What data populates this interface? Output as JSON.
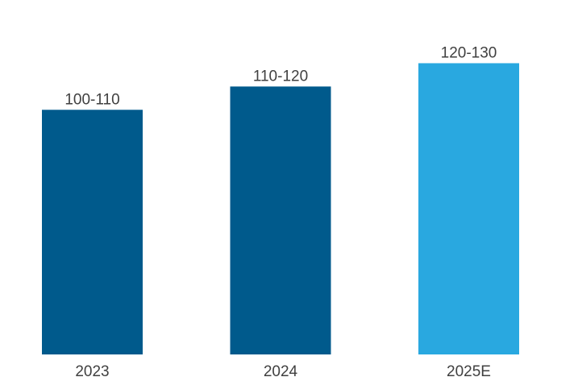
{
  "chart_data": {
    "type": "bar",
    "categories": [
      "2023",
      "2024",
      "2025E"
    ],
    "values": [
      105,
      115,
      125
    ],
    "data_labels": [
      "100-110",
      "110-120",
      "120-130"
    ],
    "ylim": [
      0,
      130
    ],
    "grid": false,
    "legend": "none",
    "colors": [
      "#005A8C",
      "#005A8C",
      "#29A8E0"
    ],
    "title": "",
    "xlabel": "",
    "ylabel": ""
  }
}
